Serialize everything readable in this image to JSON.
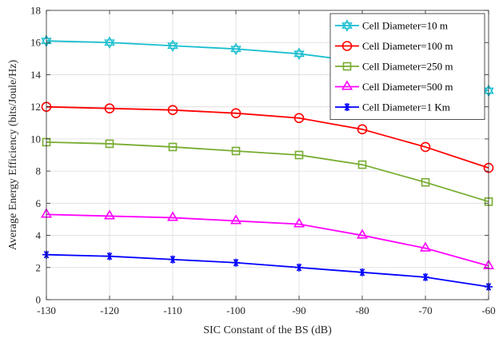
{
  "chart_data": {
    "type": "line",
    "xlabel": "SIC Constant of the BS (dB)",
    "ylabel": "Average Energy Efficiency (bits/Joule/Hz)",
    "xlim": [
      -130,
      -60
    ],
    "ylim": [
      0,
      18
    ],
    "xticks": [
      -130,
      -120,
      -110,
      -100,
      -90,
      -80,
      -70,
      -60
    ],
    "yticks": [
      0,
      2,
      4,
      6,
      8,
      10,
      12,
      14,
      16,
      18
    ],
    "grid": true,
    "legend_position": "top-right",
    "x": [
      -130,
      -120,
      -110,
      -100,
      -90,
      -80,
      -70,
      -60
    ],
    "series": [
      {
        "name": "Cell Diameter=10 m",
        "color": "#17BECF",
        "marker": "hexagram",
        "values": [
          16.1,
          16.0,
          15.8,
          15.6,
          15.3,
          14.8,
          14.2,
          13.0
        ]
      },
      {
        "name": "Cell Diameter=100 m",
        "color": "#FF0000",
        "marker": "circle",
        "values": [
          12.0,
          11.9,
          11.8,
          11.6,
          11.3,
          10.6,
          9.5,
          8.2
        ]
      },
      {
        "name": "Cell Diameter=250 m",
        "color": "#77AC30",
        "marker": "square",
        "values": [
          9.8,
          9.7,
          9.5,
          9.25,
          9.0,
          8.4,
          7.3,
          6.1
        ]
      },
      {
        "name": "Cell Diameter=500 m",
        "color": "#FF00FF",
        "marker": "triangle",
        "values": [
          5.3,
          5.2,
          5.1,
          4.9,
          4.7,
          4.0,
          3.2,
          2.1
        ]
      },
      {
        "name": "Cell Diameter=1 Km",
        "color": "#0000FF",
        "marker": "asterisk",
        "values": [
          2.8,
          2.7,
          2.5,
          2.3,
          2.0,
          1.7,
          1.4,
          0.8
        ]
      }
    ]
  }
}
